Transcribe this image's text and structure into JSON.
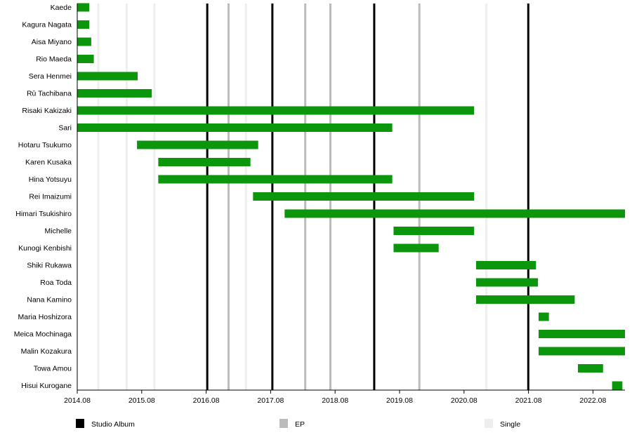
{
  "chart_data": {
    "type": "timeline",
    "xlabel": "",
    "ylabel": "",
    "x_range": [
      2014.583,
      2023.08
    ],
    "x_ticks": [
      "2014.08",
      "2015.08",
      "2016.08",
      "2017.08",
      "2018.08",
      "2019.08",
      "2020.08",
      "2021.08",
      "2022.08"
    ],
    "bar_color": "#0c960c",
    "members": [
      {
        "name": "Kaede",
        "start": 2014.58,
        "end": 2014.77
      },
      {
        "name": "Kagura Nagata",
        "start": 2014.58,
        "end": 2014.77
      },
      {
        "name": "Aisa Miyano",
        "start": 2014.58,
        "end": 2014.8
      },
      {
        "name": "Rio Maeda",
        "start": 2014.58,
        "end": 2014.84
      },
      {
        "name": "Sera Henmei",
        "start": 2014.58,
        "end": 2015.52
      },
      {
        "name": "Rū Tachibana",
        "start": 2014.58,
        "end": 2015.74
      },
      {
        "name": "Risaki Kakizaki",
        "start": 2014.58,
        "end": 2020.74
      },
      {
        "name": "Sari",
        "start": 2014.58,
        "end": 2019.47
      },
      {
        "name": "Hotaru Tsukumo",
        "start": 2015.51,
        "end": 2017.39
      },
      {
        "name": "Karen Kusaka",
        "start": 2015.84,
        "end": 2017.27
      },
      {
        "name": "Hina Yotsuyu",
        "start": 2015.84,
        "end": 2019.47
      },
      {
        "name": "Rei Imaizumi",
        "start": 2017.31,
        "end": 2020.74
      },
      {
        "name": "Himari Tsukishiro",
        "start": 2017.8,
        "end": 2023.08
      },
      {
        "name": "Michelle",
        "start": 2019.49,
        "end": 2020.74
      },
      {
        "name": "Kunogi Kenbishi",
        "start": 2019.49,
        "end": 2020.19
      },
      {
        "name": "Shiki Rukawa",
        "start": 2020.77,
        "end": 2021.7
      },
      {
        "name": "Roa Toda",
        "start": 2020.77,
        "end": 2021.73
      },
      {
        "name": "Nana Kamino",
        "start": 2020.77,
        "end": 2022.3
      },
      {
        "name": "Maria Hoshizora",
        "start": 2021.74,
        "end": 2021.9
      },
      {
        "name": "Meica Mochinaga",
        "start": 2021.74,
        "end": 2023.08
      },
      {
        "name": "Malin Kozakura",
        "start": 2021.74,
        "end": 2023.08
      },
      {
        "name": "Towa Amou",
        "start": 2022.35,
        "end": 2022.74
      },
      {
        "name": "Hisui Kurogane",
        "start": 2022.88,
        "end": 2023.04
      }
    ],
    "releases": [
      {
        "type": "Single",
        "date": 2014.91
      },
      {
        "type": "Single",
        "date": 2015.35
      },
      {
        "type": "Single",
        "date": 2015.78
      },
      {
        "type": "Studio Album",
        "date": 2016.6
      },
      {
        "type": "EP",
        "date": 2016.93
      },
      {
        "type": "Single",
        "date": 2017.2
      },
      {
        "type": "Studio Album",
        "date": 2017.61
      },
      {
        "type": "EP",
        "date": 2018.12
      },
      {
        "type": "EP",
        "date": 2018.51
      },
      {
        "type": "Studio Album",
        "date": 2019.19
      },
      {
        "type": "EP",
        "date": 2019.89
      },
      {
        "type": "Single",
        "date": 2020.93
      },
      {
        "type": "Studio Album",
        "date": 2021.58
      }
    ],
    "legend": {
      "placement": "bottom",
      "entries": [
        {
          "label": "Studio Album",
          "color": "#000000"
        },
        {
          "label": "EP",
          "color": "#bbbbbb"
        },
        {
          "label": "Single",
          "color": "#eeeeee"
        }
      ]
    }
  }
}
